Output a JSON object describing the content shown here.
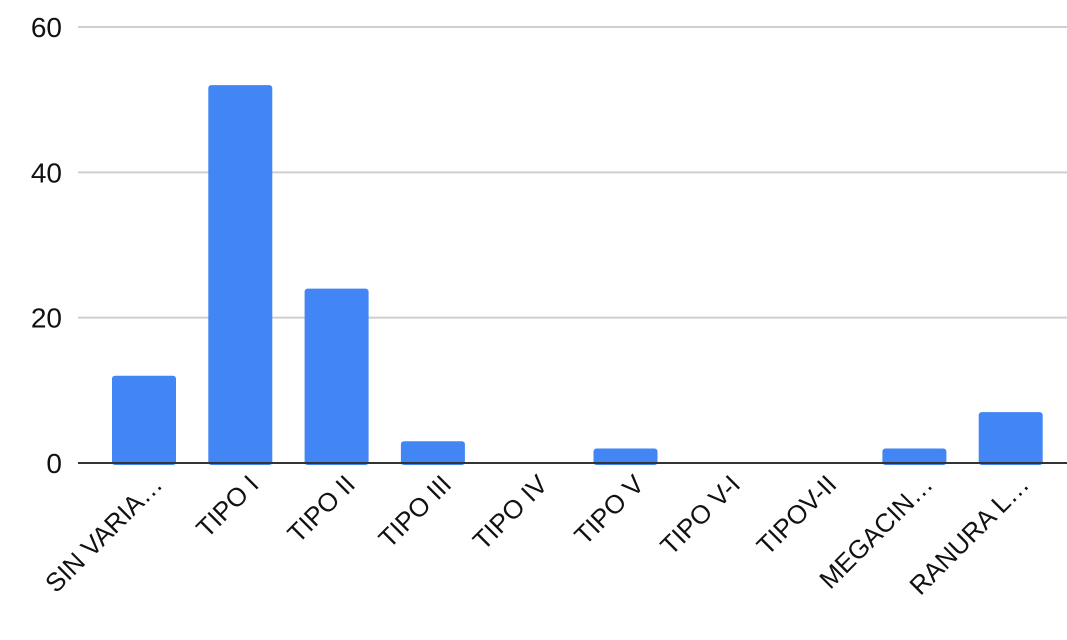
{
  "chart_data": {
    "type": "bar",
    "categories": [
      "SIN VARIA…",
      "TIPO I",
      "TIPO II",
      "TIPO III",
      "TIPO IV",
      "TIPO V",
      "TIPO V-I",
      "TIPOV-II",
      "MEGACIN…",
      "RANURA L…"
    ],
    "values": [
      12,
      52,
      24,
      3,
      0,
      2,
      0,
      0,
      2,
      7
    ],
    "ylim": [
      0,
      60
    ],
    "yticks": [
      0,
      20,
      40,
      60
    ],
    "grid": true,
    "bar_color": "#4285f4",
    "title": "",
    "xlabel": "",
    "ylabel": ""
  }
}
